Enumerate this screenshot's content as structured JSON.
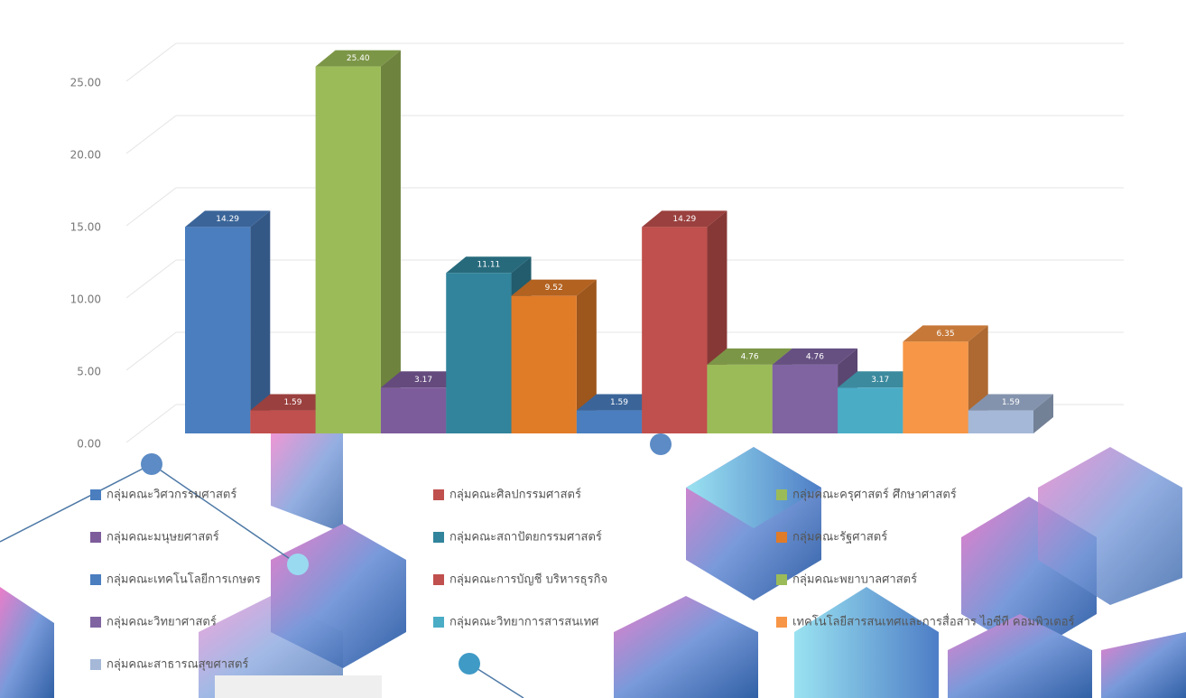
{
  "chart_data": {
    "type": "bar3d",
    "categories": [
      "กลุ่มคณะวิศวกรรมศาสตร์",
      "กลุ่มคณะศิลปกรรมศาสตร์",
      "กลุ่มคณะครุศาสตร์ ศึกษาศาสตร์",
      "กลุ่มคณะมนุษยศาสตร์",
      "กลุ่มคณะสถาปัตยกรรมศาสตร์",
      "กลุ่มคณะรัฐศาสตร์",
      "กลุ่มคณะเทคโนโลยีการเกษตร",
      "กลุ่มคณะการบัญชี บริหารธุรกิจ",
      "กลุ่มคณะพยาบาลศาสตร์",
      "กลุ่มคณะวิทยาศาสตร์",
      "กลุ่มคณะวิทยาการสารสนเทศ",
      "เทคโนโลยีสารสนเทศและการสื่อสาร ไอซีที คอมพิวเตอร์",
      "กลุ่มคณะสาธารณสุขศาสตร์"
    ],
    "values": [
      14.29,
      1.59,
      25.4,
      3.17,
      11.11,
      9.52,
      1.59,
      14.29,
      4.76,
      4.76,
      3.17,
      6.35,
      1.59
    ],
    "value_labels": [
      "14.29",
      "1.59",
      "25.40",
      "3.17",
      "11.11",
      "9.52",
      "1.59",
      "14.29",
      "4.76",
      "4.76",
      "3.17",
      "6.35",
      "1.59"
    ],
    "colors": [
      "#4a7ebf",
      "#c0504d",
      "#9bbb59",
      "#7d5c9c",
      "#31849b",
      "#e07b28",
      "#4a7ebf",
      "#c0504d",
      "#9bbb59",
      "#8064a2",
      "#4bacc6",
      "#f79646",
      "#a5b8d8"
    ],
    "ylim": [
      0,
      25
    ],
    "yticks": [
      {
        "value": 0,
        "label": "0.00"
      },
      {
        "value": 5,
        "label": "5.00"
      },
      {
        "value": 10,
        "label": "10.00"
      },
      {
        "value": 15,
        "label": "15.00"
      },
      {
        "value": 20,
        "label": "20.00"
      },
      {
        "value": 25,
        "label": "25.00"
      }
    ],
    "grid": true
  }
}
